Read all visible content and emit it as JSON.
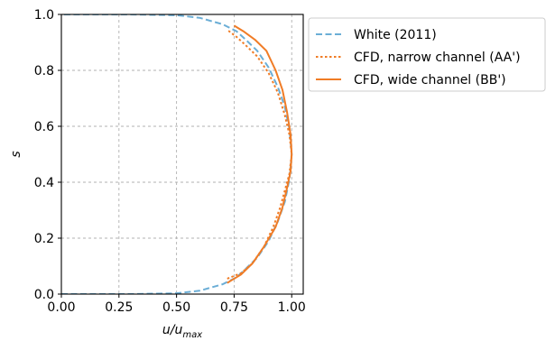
{
  "chart_data": {
    "type": "line",
    "xlabel": {
      "main": "u/u",
      "sub": "max"
    },
    "ylabel": "s",
    "xlim": [
      0,
      1.05
    ],
    "ylim": [
      0,
      1
    ],
    "xticks": [
      0.0,
      0.25,
      0.5,
      0.75,
      1.0
    ],
    "xtick_labels": [
      "0.00",
      "0.25",
      "0.50",
      "0.75",
      "1.00"
    ],
    "yticks": [
      0.0,
      0.2,
      0.4,
      0.6,
      0.8,
      1.0
    ],
    "ytick_labels": [
      "0.0",
      "0.2",
      "0.4",
      "0.6",
      "0.8",
      "1.0"
    ],
    "grid": true,
    "legend_position": "outside-top-right",
    "series": [
      {
        "name": "White (2011)",
        "color": "#6baed6",
        "style": "dashed",
        "points": [
          [
            0.0,
            0.0
          ],
          [
            0.3,
            0.0
          ],
          [
            0.5,
            0.003
          ],
          [
            0.6,
            0.012
          ],
          [
            0.7,
            0.035
          ],
          [
            0.76,
            0.06
          ],
          [
            0.8,
            0.09
          ],
          [
            0.85,
            0.13
          ],
          [
            0.9,
            0.19
          ],
          [
            0.94,
            0.26
          ],
          [
            0.97,
            0.33
          ],
          [
            0.99,
            0.41
          ],
          [
            1.0,
            0.5
          ],
          [
            0.99,
            0.59
          ],
          [
            0.97,
            0.67
          ],
          [
            0.94,
            0.74
          ],
          [
            0.9,
            0.81
          ],
          [
            0.85,
            0.87
          ],
          [
            0.8,
            0.91
          ],
          [
            0.76,
            0.94
          ],
          [
            0.7,
            0.965
          ],
          [
            0.6,
            0.988
          ],
          [
            0.5,
            0.997
          ],
          [
            0.3,
            1.0
          ],
          [
            0.0,
            1.0
          ]
        ]
      },
      {
        "name": "CFD, narrow channel (AA')",
        "color": "#f07c26",
        "style": "dotted",
        "points": [
          [
            0.72,
            0.055
          ],
          [
            0.78,
            0.075
          ],
          [
            0.83,
            0.11
          ],
          [
            0.88,
            0.17
          ],
          [
            0.92,
            0.24
          ],
          [
            0.95,
            0.31
          ],
          [
            0.97,
            0.37
          ],
          [
            0.99,
            0.43
          ],
          [
            1.0,
            0.5
          ],
          [
            0.99,
            0.57
          ],
          [
            0.97,
            0.64
          ],
          [
            0.94,
            0.72
          ],
          [
            0.9,
            0.79
          ],
          [
            0.85,
            0.85
          ],
          [
            0.8,
            0.89
          ],
          [
            0.76,
            0.92
          ],
          [
            0.72,
            0.945
          ]
        ]
      },
      {
        "name": "CFD, wide channel (BB')",
        "color": "#f07c26",
        "style": "solid",
        "points": [
          [
            0.72,
            0.04
          ],
          [
            0.78,
            0.07
          ],
          [
            0.83,
            0.11
          ],
          [
            0.88,
            0.17
          ],
          [
            0.93,
            0.24
          ],
          [
            0.96,
            0.31
          ],
          [
            0.98,
            0.38
          ],
          [
            0.995,
            0.44
          ],
          [
            1.0,
            0.5
          ],
          [
            0.995,
            0.57
          ],
          [
            0.98,
            0.65
          ],
          [
            0.96,
            0.73
          ],
          [
            0.93,
            0.8
          ],
          [
            0.89,
            0.87
          ],
          [
            0.84,
            0.91
          ],
          [
            0.79,
            0.94
          ],
          [
            0.75,
            0.96
          ]
        ]
      }
    ]
  }
}
